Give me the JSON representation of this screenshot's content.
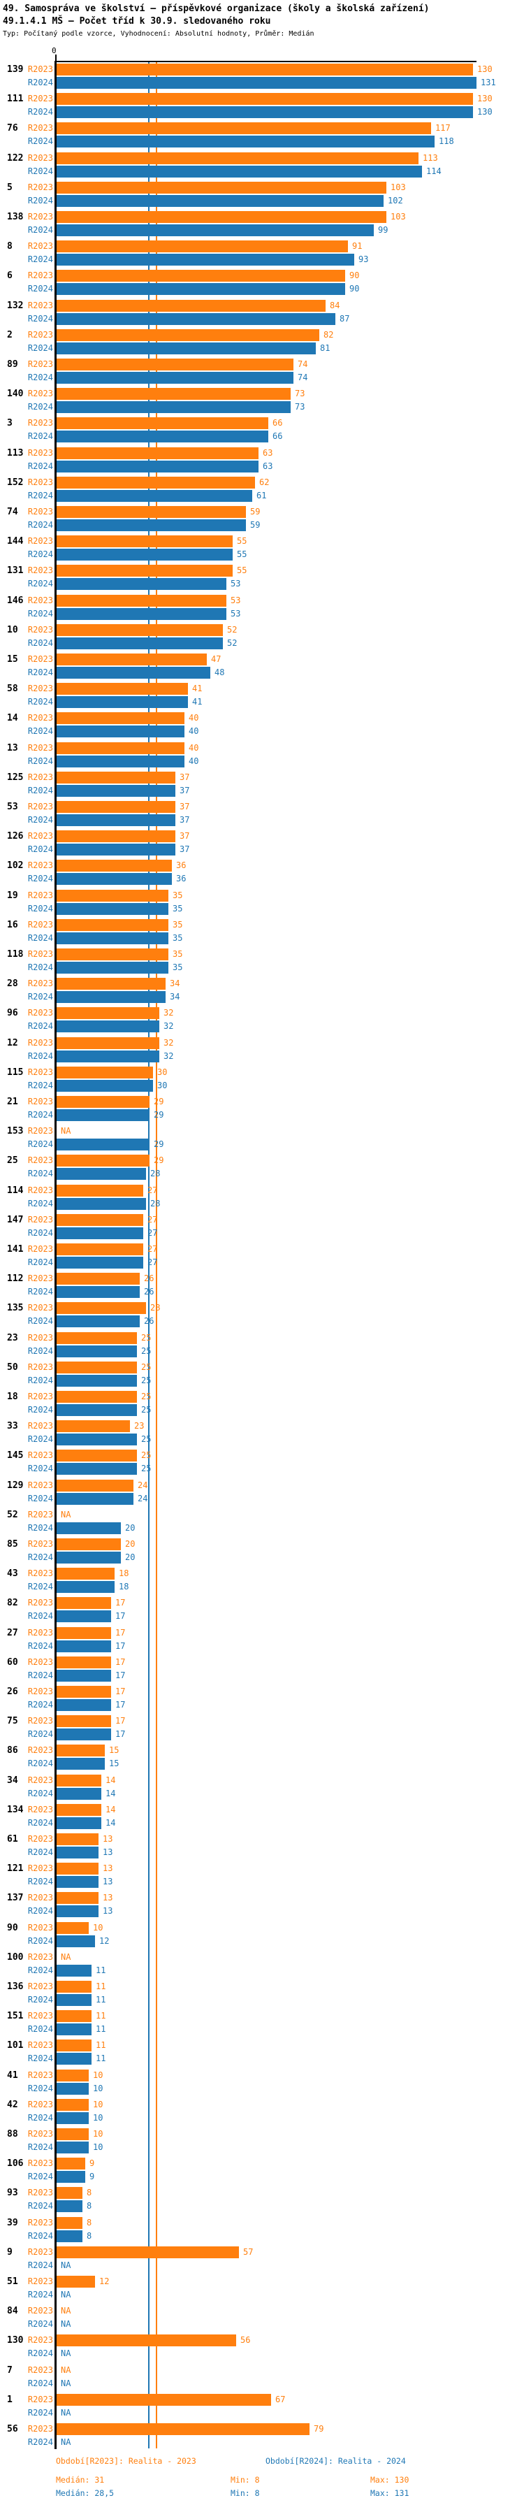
{
  "header": {
    "title1": "49. Samospráva ve školství – příspěvkové organizace (školy a školská zařízení)",
    "title2": "49.1.4.1 MŠ – Počet tříd k 30.9. sledovaného roku",
    "subtitle": "Typ: Počítaný podle vzorce, Vyhodnocení: Absolutní hodnoty, Průměr: Medián"
  },
  "colors": {
    "r2023": "#ff7f0e",
    "r2024": "#1f77b4",
    "axis": "#000000"
  },
  "footer": {
    "legend_r2023": "Období[R2023]: Realita - 2023",
    "legend_r2024": "Období[R2024]: Realita - 2024",
    "stats_r2023": {
      "median": "Medián: 31",
      "min": "Min: 8",
      "max": "Max: 130"
    },
    "stats_r2024": {
      "median": "Medián: 28,5",
      "min": "Min: 8",
      "max": "Max: 131"
    }
  },
  "chart_data": {
    "type": "bar",
    "orientation": "horizontal",
    "title": "49.1.4.1 MŠ – Počet tříd k 30.9. sledovaného roku",
    "x_tick_label": "0",
    "xlim": [
      0,
      146
    ],
    "na_label": "NA",
    "series_names": [
      "R2023",
      "R2024"
    ],
    "medians": {
      "R2023": 31,
      "R2024": 28.5
    },
    "legend_position": "bottom",
    "grid": false,
    "groups": [
      {
        "id": "139",
        "r2023": 130,
        "r2024": 131
      },
      {
        "id": "111",
        "r2023": 130,
        "r2024": 130
      },
      {
        "id": "76",
        "r2023": 117,
        "r2024": 118
      },
      {
        "id": "122",
        "r2023": 113,
        "r2024": 114
      },
      {
        "id": "5",
        "r2023": 103,
        "r2024": 102
      },
      {
        "id": "138",
        "r2023": 103,
        "r2024": 99
      },
      {
        "id": "8",
        "r2023": 91,
        "r2024": 93
      },
      {
        "id": "6",
        "r2023": 90,
        "r2024": 90
      },
      {
        "id": "132",
        "r2023": 84,
        "r2024": 87
      },
      {
        "id": "2",
        "r2023": 82,
        "r2024": 81
      },
      {
        "id": "89",
        "r2023": 74,
        "r2024": 74
      },
      {
        "id": "140",
        "r2023": 73,
        "r2024": 73
      },
      {
        "id": "3",
        "r2023": 66,
        "r2024": 66
      },
      {
        "id": "113",
        "r2023": 63,
        "r2024": 63
      },
      {
        "id": "152",
        "r2023": 62,
        "r2024": 61
      },
      {
        "id": "74",
        "r2023": 59,
        "r2024": 59
      },
      {
        "id": "144",
        "r2023": 55,
        "r2024": 55
      },
      {
        "id": "131",
        "r2023": 55,
        "r2024": 53
      },
      {
        "id": "146",
        "r2023": 53,
        "r2024": 53
      },
      {
        "id": "10",
        "r2023": 52,
        "r2024": 52
      },
      {
        "id": "15",
        "r2023": 47,
        "r2024": 48
      },
      {
        "id": "58",
        "r2023": 41,
        "r2024": 41
      },
      {
        "id": "14",
        "r2023": 40,
        "r2024": 40
      },
      {
        "id": "13",
        "r2023": 40,
        "r2024": 40
      },
      {
        "id": "125",
        "r2023": 37,
        "r2024": 37
      },
      {
        "id": "53",
        "r2023": 37,
        "r2024": 37
      },
      {
        "id": "126",
        "r2023": 37,
        "r2024": 37
      },
      {
        "id": "102",
        "r2023": 36,
        "r2024": 36
      },
      {
        "id": "19",
        "r2023": 35,
        "r2024": 35
      },
      {
        "id": "16",
        "r2023": 35,
        "r2024": 35
      },
      {
        "id": "118",
        "r2023": 35,
        "r2024": 35
      },
      {
        "id": "28",
        "r2023": 34,
        "r2024": 34
      },
      {
        "id": "96",
        "r2023": 32,
        "r2024": 32
      },
      {
        "id": "12",
        "r2023": 32,
        "r2024": 32
      },
      {
        "id": "115",
        "r2023": 30,
        "r2024": 30
      },
      {
        "id": "21",
        "r2023": 29,
        "r2024": 29
      },
      {
        "id": "153",
        "r2023": null,
        "r2024": 29
      },
      {
        "id": "25",
        "r2023": 29,
        "r2024": 28
      },
      {
        "id": "114",
        "r2023": 27,
        "r2024": 28
      },
      {
        "id": "147",
        "r2023": 27,
        "r2024": 27
      },
      {
        "id": "141",
        "r2023": 27,
        "r2024": 27
      },
      {
        "id": "112",
        "r2023": 26,
        "r2024": 26
      },
      {
        "id": "135",
        "r2023": 28,
        "r2024": 26
      },
      {
        "id": "23",
        "r2023": 25,
        "r2024": 25
      },
      {
        "id": "50",
        "r2023": 25,
        "r2024": 25
      },
      {
        "id": "18",
        "r2023": 25,
        "r2024": 25
      },
      {
        "id": "33",
        "r2023": 23,
        "r2024": 25
      },
      {
        "id": "145",
        "r2023": 25,
        "r2024": 25
      },
      {
        "id": "129",
        "r2023": 24,
        "r2024": 24
      },
      {
        "id": "52",
        "r2023": null,
        "r2024": 20
      },
      {
        "id": "85",
        "r2023": 20,
        "r2024": 20
      },
      {
        "id": "43",
        "r2023": 18,
        "r2024": 18
      },
      {
        "id": "82",
        "r2023": 17,
        "r2024": 17
      },
      {
        "id": "27",
        "r2023": 17,
        "r2024": 17
      },
      {
        "id": "60",
        "r2023": 17,
        "r2024": 17
      },
      {
        "id": "26",
        "r2023": 17,
        "r2024": 17
      },
      {
        "id": "75",
        "r2023": 17,
        "r2024": 17
      },
      {
        "id": "86",
        "r2023": 15,
        "r2024": 15
      },
      {
        "id": "34",
        "r2023": 14,
        "r2024": 14
      },
      {
        "id": "134",
        "r2023": 14,
        "r2024": 14
      },
      {
        "id": "61",
        "r2023": 13,
        "r2024": 13
      },
      {
        "id": "121",
        "r2023": 13,
        "r2024": 13
      },
      {
        "id": "137",
        "r2023": 13,
        "r2024": 13
      },
      {
        "id": "90",
        "r2023": 10,
        "r2024": 12
      },
      {
        "id": "100",
        "r2023": null,
        "r2024": 11
      },
      {
        "id": "136",
        "r2023": 11,
        "r2024": 11
      },
      {
        "id": "151",
        "r2023": 11,
        "r2024": 11
      },
      {
        "id": "101",
        "r2023": 11,
        "r2024": 11
      },
      {
        "id": "41",
        "r2023": 10,
        "r2024": 10
      },
      {
        "id": "42",
        "r2023": 10,
        "r2024": 10
      },
      {
        "id": "88",
        "r2023": 10,
        "r2024": 10
      },
      {
        "id": "106",
        "r2023": 9,
        "r2024": 9
      },
      {
        "id": "93",
        "r2023": 8,
        "r2024": 8
      },
      {
        "id": "39",
        "r2023": 8,
        "r2024": 8
      },
      {
        "id": "9",
        "r2023": 57,
        "r2024": null
      },
      {
        "id": "51",
        "r2023": 12,
        "r2024": null
      },
      {
        "id": "84",
        "r2023": null,
        "r2024": null
      },
      {
        "id": "130",
        "r2023": 56,
        "r2024": null
      },
      {
        "id": "7",
        "r2023": null,
        "r2024": null
      },
      {
        "id": "1",
        "r2023": 67,
        "r2024": null
      },
      {
        "id": "56",
        "r2023": 79,
        "r2024": null
      }
    ]
  }
}
